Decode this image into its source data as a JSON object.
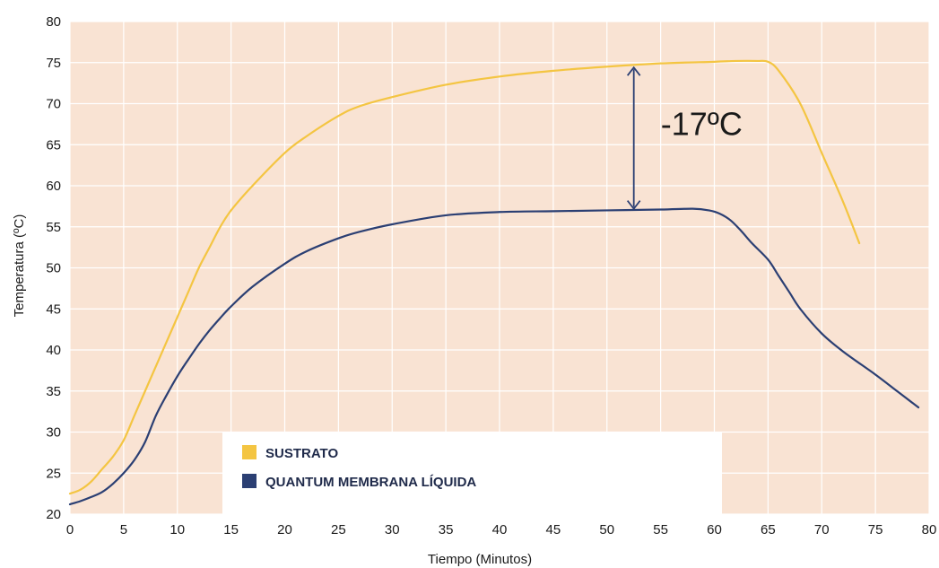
{
  "chart_data": {
    "type": "line",
    "xlabel": "Tiempo (Minutos)",
    "ylabel": "Temperatura (ºC)",
    "xlim": [
      0,
      80
    ],
    "ylim": [
      20,
      80
    ],
    "xticks": [
      0,
      5,
      10,
      15,
      20,
      25,
      30,
      35,
      40,
      45,
      50,
      55,
      60,
      65,
      70,
      75,
      80
    ],
    "yticks": [
      20,
      25,
      30,
      35,
      40,
      45,
      50,
      55,
      60,
      65,
      70,
      75,
      80
    ],
    "grid": true,
    "background_color": "#f9e3d3",
    "grid_color": "#ffffff",
    "legend_position": "bottom-left",
    "series": [
      {
        "name": "SUSTRATO",
        "color": "#f4c542",
        "x": [
          0,
          1,
          2,
          3,
          4,
          5,
          6,
          7,
          8,
          9,
          10,
          11,
          12,
          13,
          14,
          15,
          17,
          20,
          22,
          25,
          27,
          30,
          35,
          40,
          45,
          50,
          55,
          60,
          62,
          64,
          65,
          66,
          68,
          70,
          72,
          73.5
        ],
        "y": [
          22.5,
          23,
          24,
          25.5,
          27,
          29,
          32,
          35,
          38,
          41,
          44,
          47,
          50,
          52.5,
          55,
          57,
          60,
          64,
          66,
          68.5,
          69.7,
          70.8,
          72.3,
          73.3,
          74,
          74.5,
          74.9,
          75.1,
          75.2,
          75.2,
          75.1,
          74,
          70,
          64,
          58,
          53
        ]
      },
      {
        "name": "QUANTUM MEMBRANA LÍQUIDA",
        "color": "#2b3f73",
        "x": [
          0,
          1,
          2,
          3,
          4,
          5,
          6,
          7,
          8,
          9,
          10,
          11,
          12,
          13,
          14,
          15,
          17,
          20,
          22,
          25,
          27,
          30,
          35,
          40,
          45,
          50,
          55,
          58,
          59.5,
          60.5,
          61.5,
          62.5,
          63.5,
          65,
          66,
          67,
          68,
          70,
          72,
          75,
          77,
          79
        ],
        "y": [
          21.2,
          21.6,
          22.1,
          22.7,
          23.7,
          25,
          26.6,
          28.8,
          32,
          34.5,
          36.8,
          38.8,
          40.7,
          42.4,
          43.9,
          45.3,
          47.7,
          50.5,
          52,
          53.6,
          54.4,
          55.3,
          56.4,
          56.8,
          56.9,
          57,
          57.1,
          57.2,
          57,
          56.6,
          55.8,
          54.5,
          53,
          51,
          49,
          47,
          45,
          42,
          39.8,
          37,
          35,
          33
        ]
      }
    ],
    "annotations": [
      {
        "text": "-17ºC",
        "x": 52.5,
        "y_from": 57.2,
        "y_to": 74.4
      }
    ]
  }
}
